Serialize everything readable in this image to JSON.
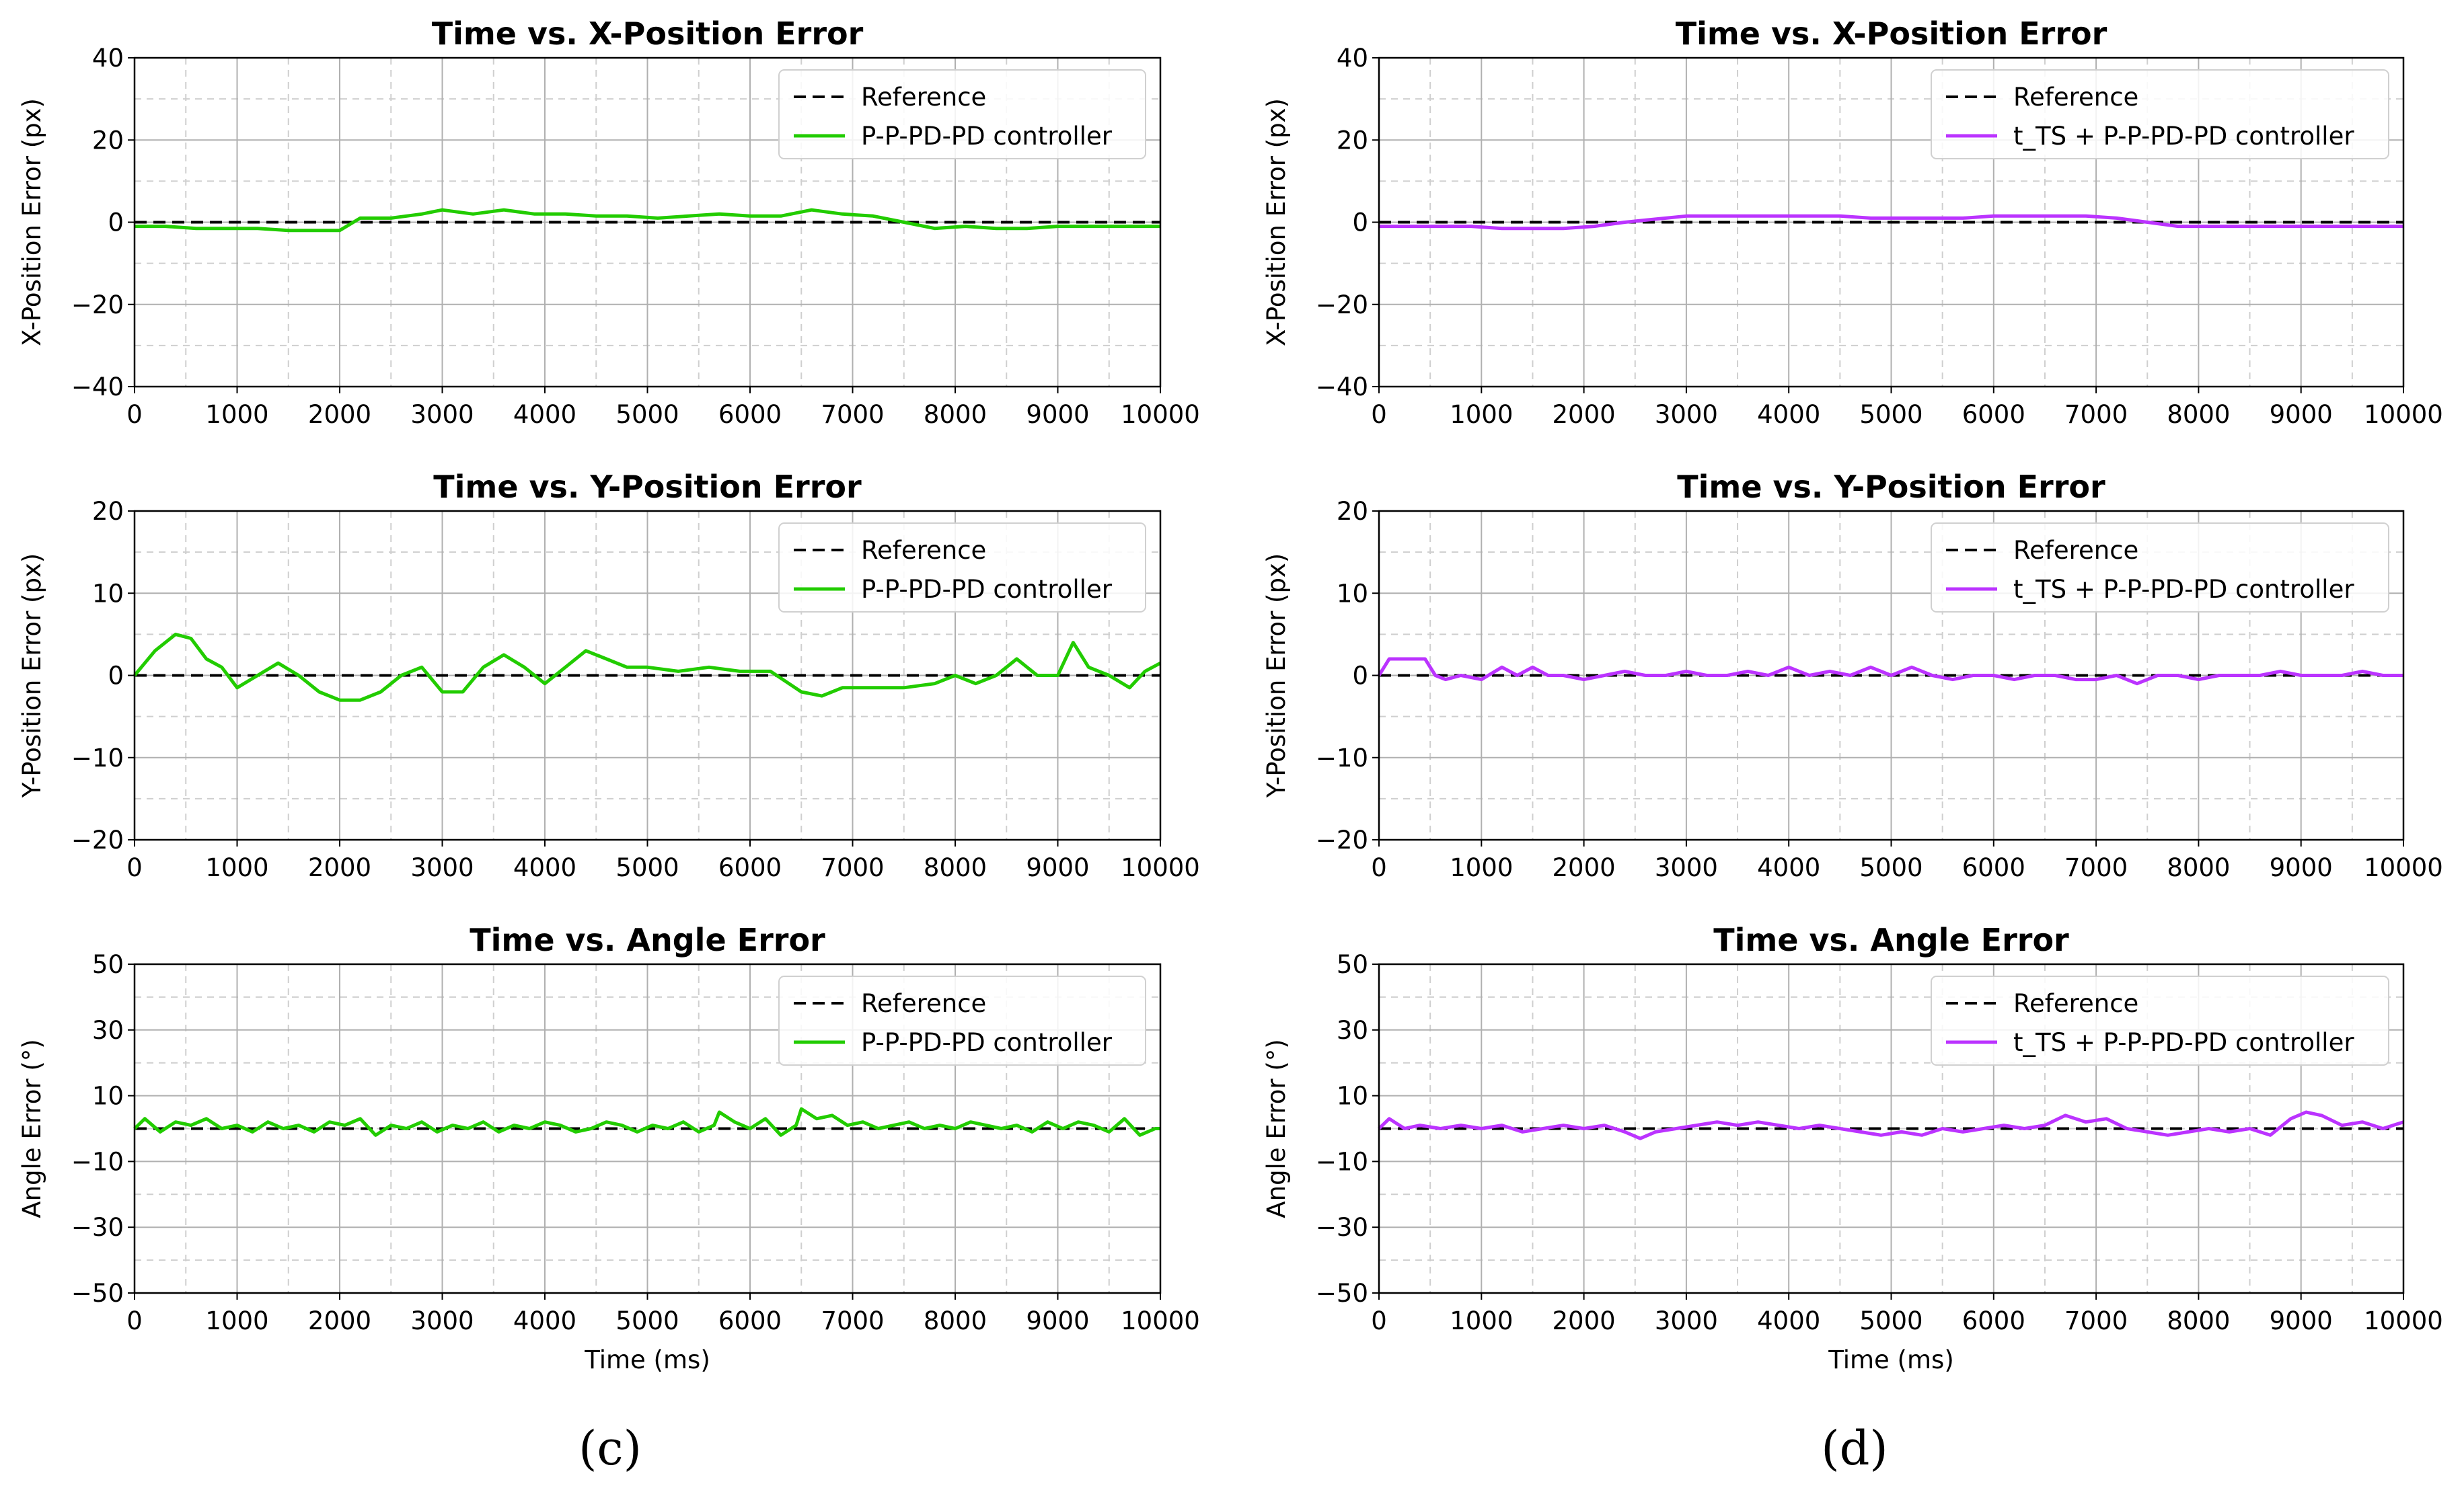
{
  "figure": {
    "panel_labels": [
      "(c)",
      "(d)"
    ],
    "time_label": "Time (ms)",
    "colors": {
      "green": "#22cc00",
      "purple": "#bb33ff",
      "reference": "#000000",
      "grid": "#b0b0b0"
    }
  },
  "chart_data": [
    {
      "type": "line",
      "title": "Time vs. X-Position Error",
      "xlabel": "",
      "ylabel": "X-Position Error (px)",
      "xlim": [
        0,
        10000
      ],
      "ylim": [
        -40,
        40
      ],
      "xticks": [
        "0",
        "1000",
        "2000",
        "3000",
        "4000",
        "5000",
        "6000",
        "7000",
        "8000",
        "9000",
        "10000"
      ],
      "yticks": [
        "40",
        "20",
        "0",
        "−20",
        "−40"
      ],
      "legend": "top-right",
      "series": [
        {
          "name": "Reference",
          "style": "dashed",
          "color": "#000000",
          "x": [
            0,
            10000
          ],
          "y": [
            0,
            0
          ]
        },
        {
          "name": "P-P-PD-PD controller",
          "color": "#22cc00",
          "x": [
            0,
            300,
            600,
            900,
            1200,
            1500,
            1800,
            2000,
            2200,
            2500,
            2800,
            3000,
            3300,
            3600,
            3900,
            4200,
            4500,
            4800,
            5100,
            5400,
            5700,
            6000,
            6300,
            6600,
            6900,
            7200,
            7500,
            7800,
            8100,
            8400,
            8700,
            9000,
            9300,
            9600,
            10000
          ],
          "y": [
            -1,
            -1,
            -1.5,
            -1.5,
            -1.5,
            -2,
            -2,
            -2,
            1,
            1,
            2,
            3,
            2,
            3,
            2,
            2,
            1.5,
            1.5,
            1,
            1.5,
            2,
            1.5,
            1.5,
            3,
            2,
            1.5,
            0,
            -1.5,
            -1,
            -1.5,
            -1.5,
            -1,
            -1,
            -1,
            -1
          ]
        }
      ]
    },
    {
      "type": "line",
      "title": "Time vs. Y-Position Error",
      "xlabel": "",
      "ylabel": "Y-Position Error (px)",
      "xlim": [
        0,
        10000
      ],
      "ylim": [
        -20,
        20
      ],
      "xticks": [
        "0",
        "1000",
        "2000",
        "3000",
        "4000",
        "5000",
        "6000",
        "7000",
        "8000",
        "9000",
        "10000"
      ],
      "yticks": [
        "20",
        "10",
        "0",
        "−10",
        "−20"
      ],
      "legend": "top-right",
      "series": [
        {
          "name": "Reference",
          "style": "dashed",
          "color": "#000000",
          "x": [
            0,
            10000
          ],
          "y": [
            0,
            0
          ]
        },
        {
          "name": "P-P-PD-PD controller",
          "color": "#22cc00",
          "x": [
            0,
            200,
            400,
            550,
            700,
            850,
            1000,
            1200,
            1400,
            1600,
            1800,
            2000,
            2200,
            2400,
            2600,
            2800,
            3000,
            3200,
            3400,
            3600,
            3800,
            4000,
            4200,
            4400,
            4600,
            4800,
            5000,
            5300,
            5600,
            5900,
            6200,
            6500,
            6700,
            6900,
            7200,
            7500,
            7800,
            8000,
            8200,
            8400,
            8600,
            8800,
            9000,
            9150,
            9300,
            9500,
            9700,
            9850,
            10000
          ],
          "y": [
            0,
            3,
            5,
            4.5,
            2,
            1,
            -1.5,
            0,
            1.5,
            0,
            -2,
            -3,
            -3,
            -2,
            0,
            1,
            -2,
            -2,
            1,
            2.5,
            1,
            -1,
            1,
            3,
            2,
            1,
            1,
            0.5,
            1,
            0.5,
            0.5,
            -2,
            -2.5,
            -1.5,
            -1.5,
            -1.5,
            -1,
            0,
            -1,
            0,
            2,
            0,
            0,
            4,
            1,
            0,
            -1.5,
            0.5,
            1.5
          ]
        }
      ]
    },
    {
      "type": "line",
      "title": "Time vs. Angle Error",
      "xlabel": "Time (ms)",
      "ylabel": "Angle Error (°)",
      "xlim": [
        0,
        10000
      ],
      "ylim": [
        -50,
        50
      ],
      "xticks": [
        "0",
        "1000",
        "2000",
        "3000",
        "4000",
        "5000",
        "6000",
        "7000",
        "8000",
        "9000",
        "10000"
      ],
      "yticks": [
        "50",
        "30",
        "10",
        "−10",
        "−30",
        "−50"
      ],
      "legend": "top-right",
      "series": [
        {
          "name": "Reference",
          "style": "dashed",
          "color": "#000000",
          "x": [
            0,
            10000
          ],
          "y": [
            0,
            0
          ]
        },
        {
          "name": "P-P-PD-PD controller",
          "color": "#22cc00",
          "x": [
            0,
            100,
            250,
            400,
            550,
            700,
            850,
            1000,
            1150,
            1300,
            1450,
            1600,
            1750,
            1900,
            2050,
            2200,
            2350,
            2500,
            2650,
            2800,
            2950,
            3100,
            3250,
            3400,
            3550,
            3700,
            3850,
            4000,
            4150,
            4300,
            4450,
            4600,
            4750,
            4900,
            5050,
            5200,
            5350,
            5500,
            5650,
            5700,
            5850,
            6000,
            6150,
            6300,
            6450,
            6500,
            6650,
            6800,
            6950,
            7100,
            7250,
            7400,
            7550,
            7700,
            7850,
            8000,
            8150,
            8300,
            8450,
            8600,
            8750,
            8900,
            9050,
            9200,
            9350,
            9500,
            9650,
            9800,
            9950,
            10000
          ],
          "y": [
            0,
            3,
            -1,
            2,
            1,
            3,
            0,
            1,
            -1,
            2,
            0,
            1,
            -1,
            2,
            1,
            3,
            -2,
            1,
            0,
            2,
            -1,
            1,
            0,
            2,
            -1,
            1,
            0,
            2,
            1,
            -1,
            0,
            2,
            1,
            -1,
            1,
            0,
            2,
            -1,
            1,
            5,
            2,
            0,
            3,
            -2,
            1,
            6,
            3,
            4,
            1,
            2,
            0,
            1,
            2,
            0,
            1,
            0,
            2,
            1,
            0,
            1,
            -1,
            2,
            0,
            2,
            1,
            -1,
            3,
            -2,
            0,
            0
          ]
        }
      ]
    },
    {
      "type": "line",
      "title": "Time vs. X-Position Error",
      "xlabel": "",
      "ylabel": "X-Position Error (px)",
      "xlim": [
        0,
        10000
      ],
      "ylim": [
        -40,
        40
      ],
      "xticks": [
        "0",
        "1000",
        "2000",
        "3000",
        "4000",
        "5000",
        "6000",
        "7000",
        "8000",
        "9000",
        "10000"
      ],
      "yticks": [
        "40",
        "20",
        "0",
        "−20",
        "−40"
      ],
      "legend": "top-right",
      "series": [
        {
          "name": "Reference",
          "style": "dashed",
          "color": "#000000",
          "x": [
            0,
            10000
          ],
          "y": [
            0,
            0
          ]
        },
        {
          "name": "t_TS + P-P-PD-PD controller",
          "color": "#bb33ff",
          "x": [
            0,
            300,
            600,
            900,
            1200,
            1500,
            1800,
            2100,
            2400,
            2600,
            2800,
            3000,
            3300,
            3600,
            3900,
            4200,
            4500,
            4800,
            5100,
            5400,
            5700,
            6000,
            6300,
            6600,
            6900,
            7200,
            7500,
            7800,
            8100,
            8400,
            8700,
            9000,
            9300,
            9600,
            10000
          ],
          "y": [
            -1,
            -1,
            -1,
            -1,
            -1.5,
            -1.5,
            -1.5,
            -1,
            0,
            0.5,
            1,
            1.5,
            1.5,
            1.5,
            1.5,
            1.5,
            1.5,
            1,
            1,
            1,
            1,
            1.5,
            1.5,
            1.5,
            1.5,
            1,
            0,
            -1,
            -1,
            -1,
            -1,
            -1,
            -1,
            -1,
            -1
          ]
        }
      ]
    },
    {
      "type": "line",
      "title": "Time vs. Y-Position Error",
      "xlabel": "",
      "ylabel": "Y-Position Error (px)",
      "xlim": [
        0,
        10000
      ],
      "ylim": [
        -20,
        20
      ],
      "xticks": [
        "0",
        "1000",
        "2000",
        "3000",
        "4000",
        "5000",
        "6000",
        "7000",
        "8000",
        "9000",
        "10000"
      ],
      "yticks": [
        "20",
        "10",
        "0",
        "−10",
        "−20"
      ],
      "legend": "top-right",
      "series": [
        {
          "name": "Reference",
          "style": "dashed",
          "color": "#000000",
          "x": [
            0,
            10000
          ],
          "y": [
            0,
            0
          ]
        },
        {
          "name": "t_TS + P-P-PD-PD controller",
          "color": "#bb33ff",
          "x": [
            0,
            50,
            100,
            300,
            450,
            550,
            650,
            800,
            1000,
            1200,
            1350,
            1500,
            1650,
            1800,
            2000,
            2200,
            2400,
            2600,
            2800,
            3000,
            3200,
            3400,
            3600,
            3800,
            4000,
            4200,
            4400,
            4600,
            4800,
            5000,
            5200,
            5400,
            5600,
            5800,
            6000,
            6200,
            6400,
            6600,
            6800,
            7000,
            7200,
            7400,
            7600,
            7800,
            8000,
            8200,
            8400,
            8600,
            8800,
            9000,
            9200,
            9400,
            9600,
            9800,
            10000
          ],
          "y": [
            0,
            1,
            2,
            2,
            2,
            0,
            -0.5,
            0,
            -0.5,
            1,
            0,
            1,
            0,
            0,
            -0.5,
            0,
            0.5,
            0,
            0,
            0.5,
            0,
            0,
            0.5,
            0,
            1,
            0,
            0.5,
            0,
            1,
            0,
            1,
            0,
            -0.5,
            0,
            0,
            -0.5,
            0,
            0,
            -0.5,
            -0.5,
            0,
            -1,
            0,
            0,
            -0.5,
            0,
            0,
            0,
            0.5,
            0,
            0,
            0,
            0.5,
            0,
            0
          ]
        }
      ]
    },
    {
      "type": "line",
      "title": "Time vs. Angle Error",
      "xlabel": "Time (ms)",
      "ylabel": "Angle Error (°)",
      "xlim": [
        0,
        10000
      ],
      "ylim": [
        -50,
        50
      ],
      "xticks": [
        "0",
        "1000",
        "2000",
        "3000",
        "4000",
        "5000",
        "6000",
        "7000",
        "8000",
        "9000",
        "10000"
      ],
      "yticks": [
        "50",
        "30",
        "10",
        "−10",
        "−30",
        "−50"
      ],
      "legend": "top-right",
      "series": [
        {
          "name": "Reference",
          "style": "dashed",
          "color": "#000000",
          "x": [
            0,
            10000
          ],
          "y": [
            0,
            0
          ]
        },
        {
          "name": "t_TS + P-P-PD-PD controller",
          "color": "#bb33ff",
          "x": [
            0,
            100,
            250,
            400,
            600,
            800,
            1000,
            1200,
            1400,
            1600,
            1800,
            2000,
            2200,
            2400,
            2550,
            2700,
            2900,
            3100,
            3300,
            3500,
            3700,
            3900,
            4100,
            4300,
            4500,
            4700,
            4900,
            5100,
            5300,
            5500,
            5700,
            5900,
            6100,
            6300,
            6500,
            6700,
            6900,
            7100,
            7300,
            7500,
            7700,
            7900,
            8100,
            8300,
            8500,
            8700,
            8900,
            9050,
            9200,
            9400,
            9600,
            9800,
            10000
          ],
          "y": [
            0,
            3,
            0,
            1,
            0,
            1,
            0,
            1,
            -1,
            0,
            1,
            0,
            1,
            -1,
            -3,
            -1,
            0,
            1,
            2,
            1,
            2,
            1,
            0,
            1,
            0,
            -1,
            -2,
            -1,
            -2,
            0,
            -1,
            0,
            1,
            0,
            1,
            4,
            2,
            3,
            0,
            -1,
            -2,
            -1,
            0,
            -1,
            0,
            -2,
            3,
            5,
            4,
            1,
            2,
            0,
            2
          ]
        }
      ]
    }
  ]
}
